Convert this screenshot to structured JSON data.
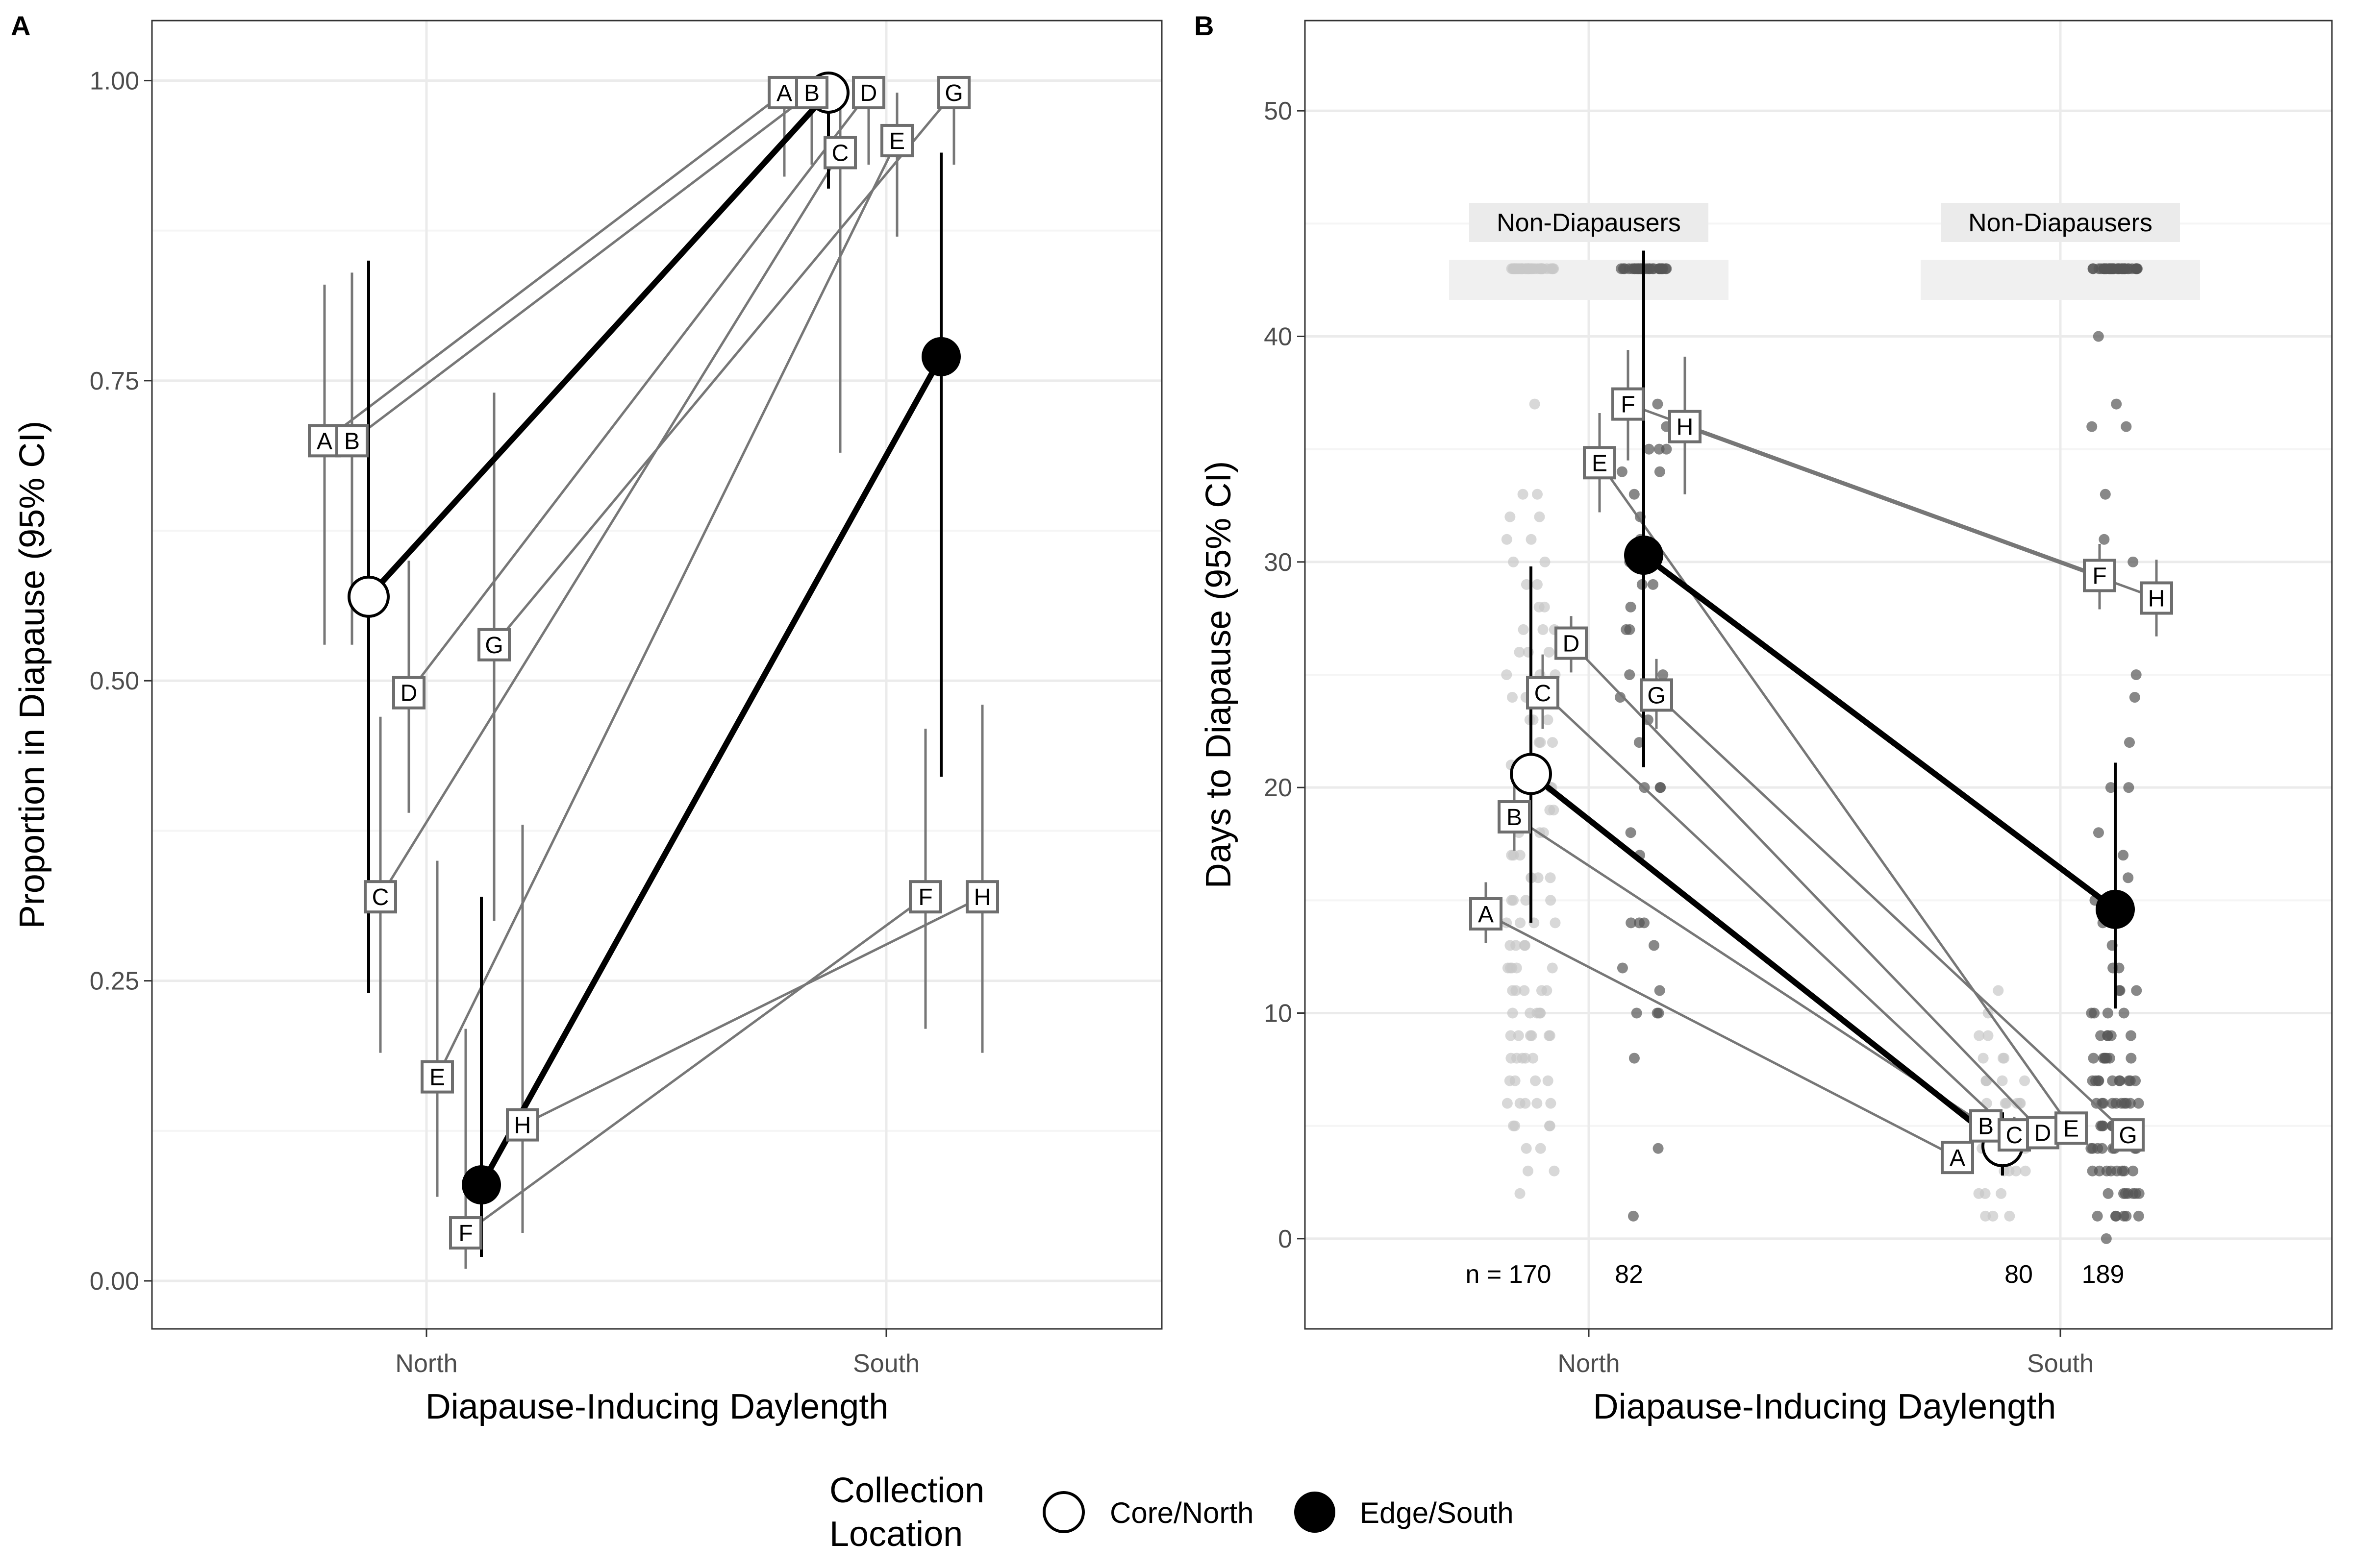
{
  "chart_data": [
    {
      "panel": "A",
      "type": "scatter",
      "xlabel": "Diapause-Inducing Daylength",
      "ylabel": "Proportion in Diapause (95% CI)",
      "categories": [
        "North",
        "South"
      ],
      "ylim": [
        -0.04,
        1.05
      ],
      "yticks": [
        0.0,
        0.25,
        0.5,
        0.75,
        1.0
      ],
      "ytick_labels": [
        "0.00",
        "0.25",
        "0.50",
        "0.75",
        "1.00"
      ],
      "grid": true,
      "populations": [
        {
          "label": "A",
          "group": "Core/North",
          "north": {
            "y": 0.7,
            "lo": 0.53,
            "hi": 0.83
          },
          "south": {
            "y": 0.99,
            "lo": 0.92,
            "hi": 1.0
          }
        },
        {
          "label": "B",
          "group": "Core/North",
          "north": {
            "y": 0.7,
            "lo": 0.53,
            "hi": 0.84
          },
          "south": {
            "y": 0.99,
            "lo": 0.93,
            "hi": 1.0
          }
        },
        {
          "label": "C",
          "group": "Core/North",
          "north": {
            "y": 0.32,
            "lo": 0.19,
            "hi": 0.47
          },
          "south": {
            "y": 0.94,
            "lo": 0.69,
            "hi": 0.99
          }
        },
        {
          "label": "D",
          "group": "Core/North",
          "north": {
            "y": 0.49,
            "lo": 0.39,
            "hi": 0.6
          },
          "south": {
            "y": 0.99,
            "lo": 0.93,
            "hi": 1.0
          }
        },
        {
          "label": "E",
          "group": "Edge/South",
          "north": {
            "y": 0.17,
            "lo": 0.07,
            "hi": 0.35
          },
          "south": {
            "y": 0.95,
            "lo": 0.87,
            "hi": 0.99
          }
        },
        {
          "label": "F",
          "group": "Edge/South",
          "north": {
            "y": 0.04,
            "lo": 0.01,
            "hi": 0.21
          },
          "south": {
            "y": 0.32,
            "lo": 0.21,
            "hi": 0.46
          }
        },
        {
          "label": "G",
          "group": "Edge/South",
          "north": {
            "y": 0.53,
            "lo": 0.3,
            "hi": 0.74
          },
          "south": {
            "y": 0.99,
            "lo": 0.93,
            "hi": 1.0
          }
        },
        {
          "label": "H",
          "group": "Edge/South",
          "north": {
            "y": 0.13,
            "lo": 0.04,
            "hi": 0.38
          },
          "south": {
            "y": 0.32,
            "lo": 0.19,
            "hi": 0.48
          }
        }
      ],
      "group_means": [
        {
          "name": "Core/North",
          "north": {
            "y": 0.57,
            "lo": 0.24,
            "hi": 0.85
          },
          "south": {
            "y": 0.99,
            "lo": 0.91,
            "hi": 1.0
          }
        },
        {
          "name": "Edge/South",
          "north": {
            "y": 0.08,
            "lo": 0.02,
            "hi": 0.32
          },
          "south": {
            "y": 0.77,
            "lo": 0.42,
            "hi": 0.94
          }
        }
      ]
    },
    {
      "panel": "B",
      "type": "scatter",
      "xlabel": "Diapause-Inducing Daylength",
      "ylabel": "Days to Diapause (95% CI)",
      "categories": [
        "North",
        "South"
      ],
      "ylim": [
        -4,
        54
      ],
      "yticks": [
        0,
        10,
        20,
        30,
        40,
        50
      ],
      "ytick_labels": [
        "0",
        "10",
        "20",
        "30",
        "40",
        "50"
      ],
      "grid": true,
      "non_diapauser_label": "Non-Diapausers",
      "non_diapauser_value": 43,
      "sample_sizes": [
        "n = 170",
        "82",
        "80",
        "189"
      ],
      "populations": [
        {
          "label": "A",
          "group": "Core/North",
          "north": {
            "y": 14.4,
            "lo": 13.1,
            "hi": 15.8
          },
          "south": {
            "y": 3.6,
            "lo": 3.0,
            "hi": 4.3
          }
        },
        {
          "label": "B",
          "group": "Core/North",
          "north": {
            "y": 18.7,
            "lo": 17.2,
            "hi": 20.3
          },
          "south": {
            "y": 5.0,
            "lo": 4.3,
            "hi": 5.8
          }
        },
        {
          "label": "C",
          "group": "Core/North",
          "north": {
            "y": 24.2,
            "lo": 22.6,
            "hi": 25.9
          },
          "south": {
            "y": 4.6,
            "lo": 3.9,
            "hi": 5.4
          }
        },
        {
          "label": "D",
          "group": "Core/North",
          "north": {
            "y": 26.4,
            "lo": 25.1,
            "hi": 27.6
          },
          "south": {
            "y": 4.7,
            "lo": 4.0,
            "hi": 5.4
          }
        },
        {
          "label": "E",
          "group": "Edge/South",
          "north": {
            "y": 34.4,
            "lo": 32.2,
            "hi": 36.6
          },
          "south": {
            "y": 4.9,
            "lo": 4.3,
            "hi": 5.6
          }
        },
        {
          "label": "F",
          "group": "Edge/South",
          "north": {
            "y": 37.0,
            "lo": 34.5,
            "hi": 39.4
          },
          "south": {
            "y": 29.4,
            "lo": 27.9,
            "hi": 30.8
          }
        },
        {
          "label": "G",
          "group": "Edge/South",
          "north": {
            "y": 24.1,
            "lo": 22.6,
            "hi": 25.7
          },
          "south": {
            "y": 4.6,
            "lo": 3.9,
            "hi": 5.3
          }
        },
        {
          "label": "H",
          "group": "Edge/South",
          "north": {
            "y": 36.0,
            "lo": 33.0,
            "hi": 39.1
          },
          "south": {
            "y": 28.4,
            "lo": 26.7,
            "hi": 30.1
          }
        }
      ],
      "group_means": [
        {
          "name": "Core/North",
          "north": {
            "y": 20.6,
            "lo": 14.0,
            "hi": 29.8
          },
          "south": {
            "y": 4.1,
            "lo": 2.8,
            "hi": 5.6
          }
        },
        {
          "name": "Edge/South",
          "north": {
            "y": 30.3,
            "lo": 20.9,
            "hi": 43.8
          },
          "south": {
            "y": 14.6,
            "lo": 10.2,
            "hi": 21.1
          }
        }
      ],
      "raw_points": {
        "core_north": [
          2,
          3,
          3,
          4,
          4,
          5,
          5,
          5,
          5,
          6,
          6,
          6,
          6,
          6,
          7,
          7,
          7,
          7,
          8,
          8,
          8,
          8,
          8,
          9,
          9,
          9,
          9,
          9,
          9,
          10,
          10,
          10,
          10,
          10,
          10,
          11,
          11,
          11,
          11,
          11,
          12,
          12,
          12,
          12,
          12,
          13,
          13,
          13,
          13,
          14,
          14,
          14,
          14,
          15,
          15,
          15,
          15,
          16,
          16,
          16,
          16,
          17,
          17,
          17,
          18,
          18,
          18,
          19,
          19,
          19,
          20,
          20,
          20,
          21,
          21,
          21,
          22,
          22,
          22,
          23,
          23,
          23,
          24,
          24,
          24,
          25,
          25,
          25,
          26,
          26,
          26,
          27,
          27,
          27,
          28,
          28,
          29,
          29,
          30,
          30,
          31,
          31,
          32,
          32,
          33,
          33,
          37
        ],
        "edge_north": [
          1,
          4,
          8,
          10,
          10,
          10,
          11,
          12,
          13,
          14,
          14,
          14,
          17,
          18,
          20,
          20,
          20,
          22,
          23,
          24,
          24,
          25,
          25,
          27,
          27,
          28,
          29,
          29,
          30,
          30,
          31,
          32,
          33,
          34,
          34,
          35,
          35,
          35,
          36,
          37
        ],
        "core_south": [
          1,
          1,
          1,
          2,
          2,
          2,
          3,
          3,
          3,
          3,
          4,
          4,
          4,
          4,
          4,
          4,
          5,
          5,
          5,
          5,
          5,
          5,
          5,
          6,
          6,
          6,
          6,
          6,
          6,
          7,
          7,
          7,
          7,
          7,
          8,
          8,
          8,
          9,
          9,
          10,
          11
        ],
        "edge_south": [
          0,
          1,
          1,
          1,
          1,
          1,
          1,
          2,
          2,
          2,
          2,
          2,
          2,
          2,
          3,
          3,
          3,
          3,
          3,
          3,
          3,
          3,
          4,
          4,
          4,
          4,
          4,
          4,
          4,
          4,
          5,
          5,
          5,
          5,
          5,
          5,
          5,
          5,
          5,
          6,
          6,
          6,
          6,
          6,
          6,
          6,
          6,
          6,
          6,
          7,
          7,
          7,
          7,
          7,
          7,
          7,
          7,
          7,
          7,
          8,
          8,
          8,
          8,
          8,
          8,
          8,
          9,
          9,
          9,
          9,
          9,
          10,
          10,
          10,
          10,
          11,
          11,
          11,
          12,
          12,
          13,
          14,
          15,
          16,
          17,
          18,
          20,
          20,
          22,
          24,
          25,
          29,
          30,
          31,
          33,
          36,
          36,
          37,
          40
        ]
      },
      "non_diapauser_counts": {
        "core_north": 40,
        "edge_north": 30,
        "core_south": 0,
        "edge_south": 40
      }
    }
  ],
  "panels": {
    "a": {
      "letter": "A",
      "xlabel": "Diapause-Inducing Daylength",
      "ylabel": "Proportion in Diapause (95% CI)",
      "xticks": [
        "North",
        "South"
      ]
    },
    "b": {
      "letter": "B",
      "xlabel": "Diapause-Inducing Daylength",
      "ylabel": "Days to Diapause (95% CI)",
      "xticks": [
        "North",
        "South"
      ],
      "strip_left": "Non-Diapausers",
      "strip_right": "Non-Diapausers",
      "n1": "n = 170",
      "n2": "82",
      "n3": "80",
      "n4": "189"
    }
  },
  "legend": {
    "title_line1": "Collection",
    "title_line2": "Location",
    "items": [
      {
        "label": "Core/North",
        "fill": "#ffffff"
      },
      {
        "label": "Edge/South",
        "fill": "#000000"
      }
    ]
  },
  "colors": {
    "pop_line": "#777777",
    "mean_line": "#000000",
    "grid_major": "#ebebeb",
    "grid_minor": "#f5f5f5",
    "core_raw": "#c8c8c8",
    "edge_raw": "#555555"
  }
}
